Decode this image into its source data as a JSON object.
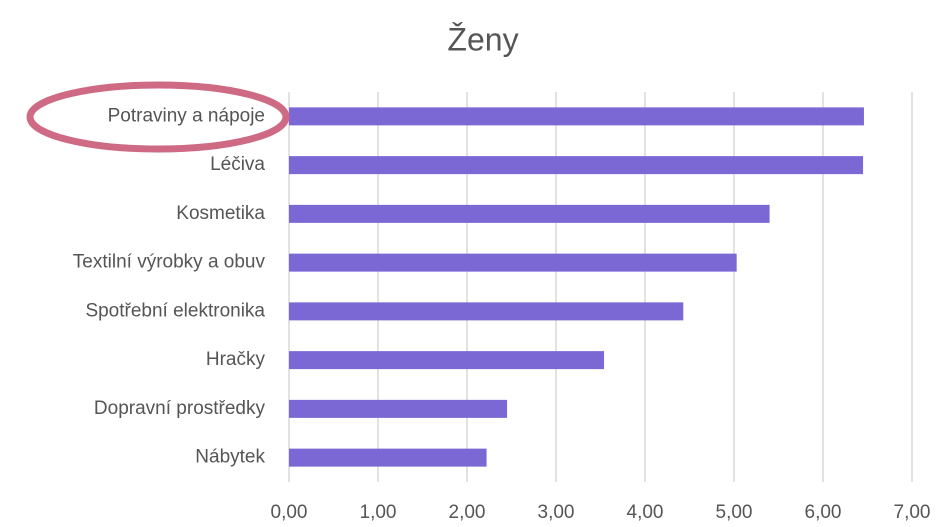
{
  "chart_data": {
    "type": "bar",
    "orientation": "horizontal",
    "title": "Ženy",
    "categories": [
      "Potraviny a nápoje",
      "Léčiva",
      "Kosmetika",
      "Textilní výrobky a obuv",
      "Spotřební elektronika",
      "Hračky",
      "Dopravní prostředky",
      "Nábytek"
    ],
    "values": [
      6.46,
      6.45,
      5.4,
      5.03,
      4.43,
      3.54,
      2.45,
      2.22
    ],
    "color": "#7b68d5",
    "xlim": [
      0,
      7
    ],
    "xticks": [
      {
        "value": 0,
        "label": "0,00"
      },
      {
        "value": 1,
        "label": "1,00"
      },
      {
        "value": 2,
        "label": "2,00"
      },
      {
        "value": 3,
        "label": "3,00"
      },
      {
        "value": 4,
        "label": "4,00"
      },
      {
        "value": 5,
        "label": "5,00"
      },
      {
        "value": 6,
        "label": "6,00"
      },
      {
        "value": 7,
        "label": "7,00"
      }
    ],
    "grid": true
  }
}
